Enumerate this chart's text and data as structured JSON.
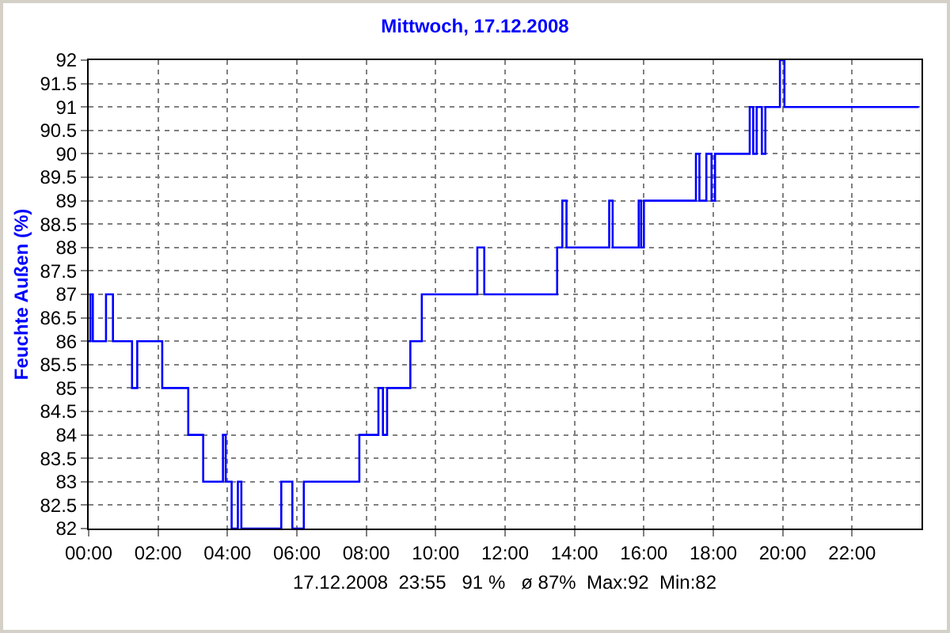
{
  "chart_data": {
    "type": "step",
    "title": "Mittwoch, 17.12.2008",
    "ylabel": "Feuchte Außen (%)",
    "annotations": [
      "17.12.2008  23:55   91 %   ø 87%  Max:92  Min:82"
    ],
    "series": [
      {
        "color": "#0000ff",
        "x": [
          0,
          0.05,
          0.12,
          0.5,
          0.7,
          1.25,
          1.4,
          2.12,
          2.87,
          3.3,
          3.87,
          3.95,
          4.12,
          4.3,
          4.4,
          5.55,
          5.87,
          6.2,
          7.8,
          8.35,
          8.48,
          8.6,
          9.27,
          9.6,
          11.2,
          11.4,
          13.5,
          13.65,
          13.77,
          15.0,
          15.1,
          15.85,
          15.92,
          16.0,
          17.5,
          17.6,
          17.8,
          17.95,
          18.05,
          19.05,
          19.15,
          19.25,
          19.4,
          19.5,
          19.92,
          20.05,
          23.92
        ],
        "values": [
          86,
          87,
          86,
          87,
          86,
          85,
          86,
          85,
          84,
          83,
          84,
          83,
          82,
          83,
          82,
          83,
          82,
          83,
          84,
          85,
          84,
          85,
          86,
          87,
          88,
          87,
          88,
          89,
          88,
          89,
          88,
          89,
          88,
          89,
          90,
          89,
          90,
          89,
          90,
          91,
          90,
          91,
          90,
          91,
          92,
          91,
          91
        ]
      }
    ],
    "xlim": [
      0,
      24
    ],
    "xticks": [
      {
        "value": 0,
        "label": "00:00"
      },
      {
        "value": 2,
        "label": "02:00"
      },
      {
        "value": 4,
        "label": "04:00"
      },
      {
        "value": 6,
        "label": "06:00"
      },
      {
        "value": 8,
        "label": "08:00"
      },
      {
        "value": 10,
        "label": "10:00"
      },
      {
        "value": 12,
        "label": "12:00"
      },
      {
        "value": 14,
        "label": "14:00"
      },
      {
        "value": 16,
        "label": "16:00"
      },
      {
        "value": 18,
        "label": "18:00"
      },
      {
        "value": 20,
        "label": "20:00"
      },
      {
        "value": 22,
        "label": "22:00"
      }
    ],
    "ylim": [
      82,
      92
    ],
    "yticks": [
      82,
      82.5,
      83,
      83.5,
      84,
      84.5,
      85,
      85.5,
      86,
      86.5,
      87,
      87.5,
      88,
      88.5,
      89,
      89.5,
      90,
      90.5,
      91,
      91.5,
      92
    ],
    "grid": true,
    "line_style": "solid"
  }
}
